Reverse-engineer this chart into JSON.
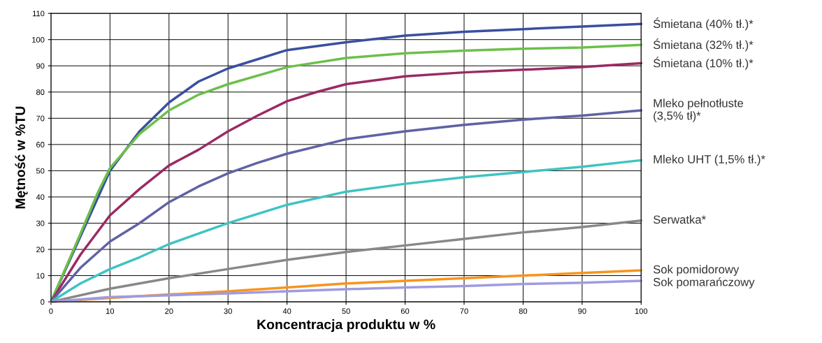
{
  "chart_data": {
    "type": "line",
    "xlabel": "Koncentracja produktu w %",
    "ylabel": "Mętność w %TU",
    "xlim": [
      0,
      100
    ],
    "ylim": [
      0,
      110
    ],
    "xticks": [
      0,
      10,
      20,
      30,
      40,
      50,
      60,
      70,
      80,
      90,
      100
    ],
    "yticks": [
      0,
      10,
      20,
      30,
      40,
      50,
      60,
      70,
      80,
      90,
      100,
      110
    ],
    "grid": true,
    "legend": false,
    "marker": "none",
    "line_style": "solid",
    "series": [
      {
        "name": "Śmietana (40% tł.)*",
        "color": "#3a4fa0",
        "x": [
          0,
          5,
          8,
          10,
          15,
          20,
          25,
          30,
          40,
          50,
          60,
          70,
          80,
          90,
          100
        ],
        "values": [
          0,
          25,
          40,
          50,
          65,
          76,
          84,
          89,
          96,
          99,
          101.5,
          103,
          104,
          105,
          106
        ]
      },
      {
        "name": "Śmietana (32% tł.)*",
        "color": "#6cc04a",
        "x": [
          0,
          5,
          8,
          10,
          15,
          20,
          25,
          30,
          40,
          50,
          60,
          70,
          80,
          90,
          100
        ],
        "values": [
          0,
          26,
          42,
          51,
          64,
          73,
          79,
          83,
          89.5,
          93,
          94.8,
          95.8,
          96.5,
          97,
          98
        ]
      },
      {
        "name": "Śmietana (10% tł.)*",
        "color": "#9b2a63",
        "x": [
          0,
          5,
          10,
          15,
          20,
          25,
          30,
          35,
          40,
          45,
          50,
          60,
          70,
          80,
          90,
          100
        ],
        "values": [
          0,
          18,
          33,
          43,
          52,
          58,
          65,
          71,
          76.5,
          80,
          83,
          86,
          87.5,
          88.5,
          89.5,
          91
        ]
      },
      {
        "name": "Mleko pełnotłuste\n(3,5% tł)*",
        "color": "#5f62a4",
        "x": [
          0,
          5,
          10,
          15,
          20,
          25,
          30,
          35,
          40,
          50,
          60,
          70,
          80,
          90,
          100
        ],
        "values": [
          0,
          13,
          23,
          30,
          38,
          44,
          49,
          53,
          56.5,
          62,
          65,
          67.5,
          69.5,
          71,
          73
        ]
      },
      {
        "name": "Mleko UHT (1,5% tł.)*",
        "color": "#3fc3c3",
        "x": [
          0,
          5,
          10,
          15,
          20,
          25,
          30,
          40,
          50,
          60,
          70,
          80,
          90,
          100
        ],
        "values": [
          0,
          7,
          12.5,
          17,
          22,
          26,
          30,
          37,
          42,
          45,
          47.5,
          49.5,
          51.5,
          54
        ]
      },
      {
        "name": "Serwatka*",
        "color": "#888888",
        "x": [
          0,
          10,
          20,
          30,
          40,
          50,
          60,
          70,
          80,
          90,
          100
        ],
        "values": [
          0,
          5,
          9,
          12.5,
          16,
          19,
          21.5,
          24,
          26.5,
          28.5,
          31
        ]
      },
      {
        "name": "Sok pomidorowy",
        "color": "#f7941d",
        "x": [
          0,
          10,
          20,
          30,
          40,
          50,
          60,
          70,
          80,
          90,
          100
        ],
        "values": [
          0,
          1.5,
          2.8,
          4,
          5.5,
          7,
          8,
          9,
          10,
          11,
          12
        ]
      },
      {
        "name": "Sok pomarańczowy",
        "color": "#9f9be0",
        "x": [
          0,
          10,
          20,
          30,
          40,
          50,
          60,
          70,
          80,
          90,
          100
        ],
        "values": [
          0,
          1.8,
          2.5,
          3.2,
          4,
          4.8,
          5.5,
          6,
          6.8,
          7.3,
          8
        ]
      }
    ]
  }
}
